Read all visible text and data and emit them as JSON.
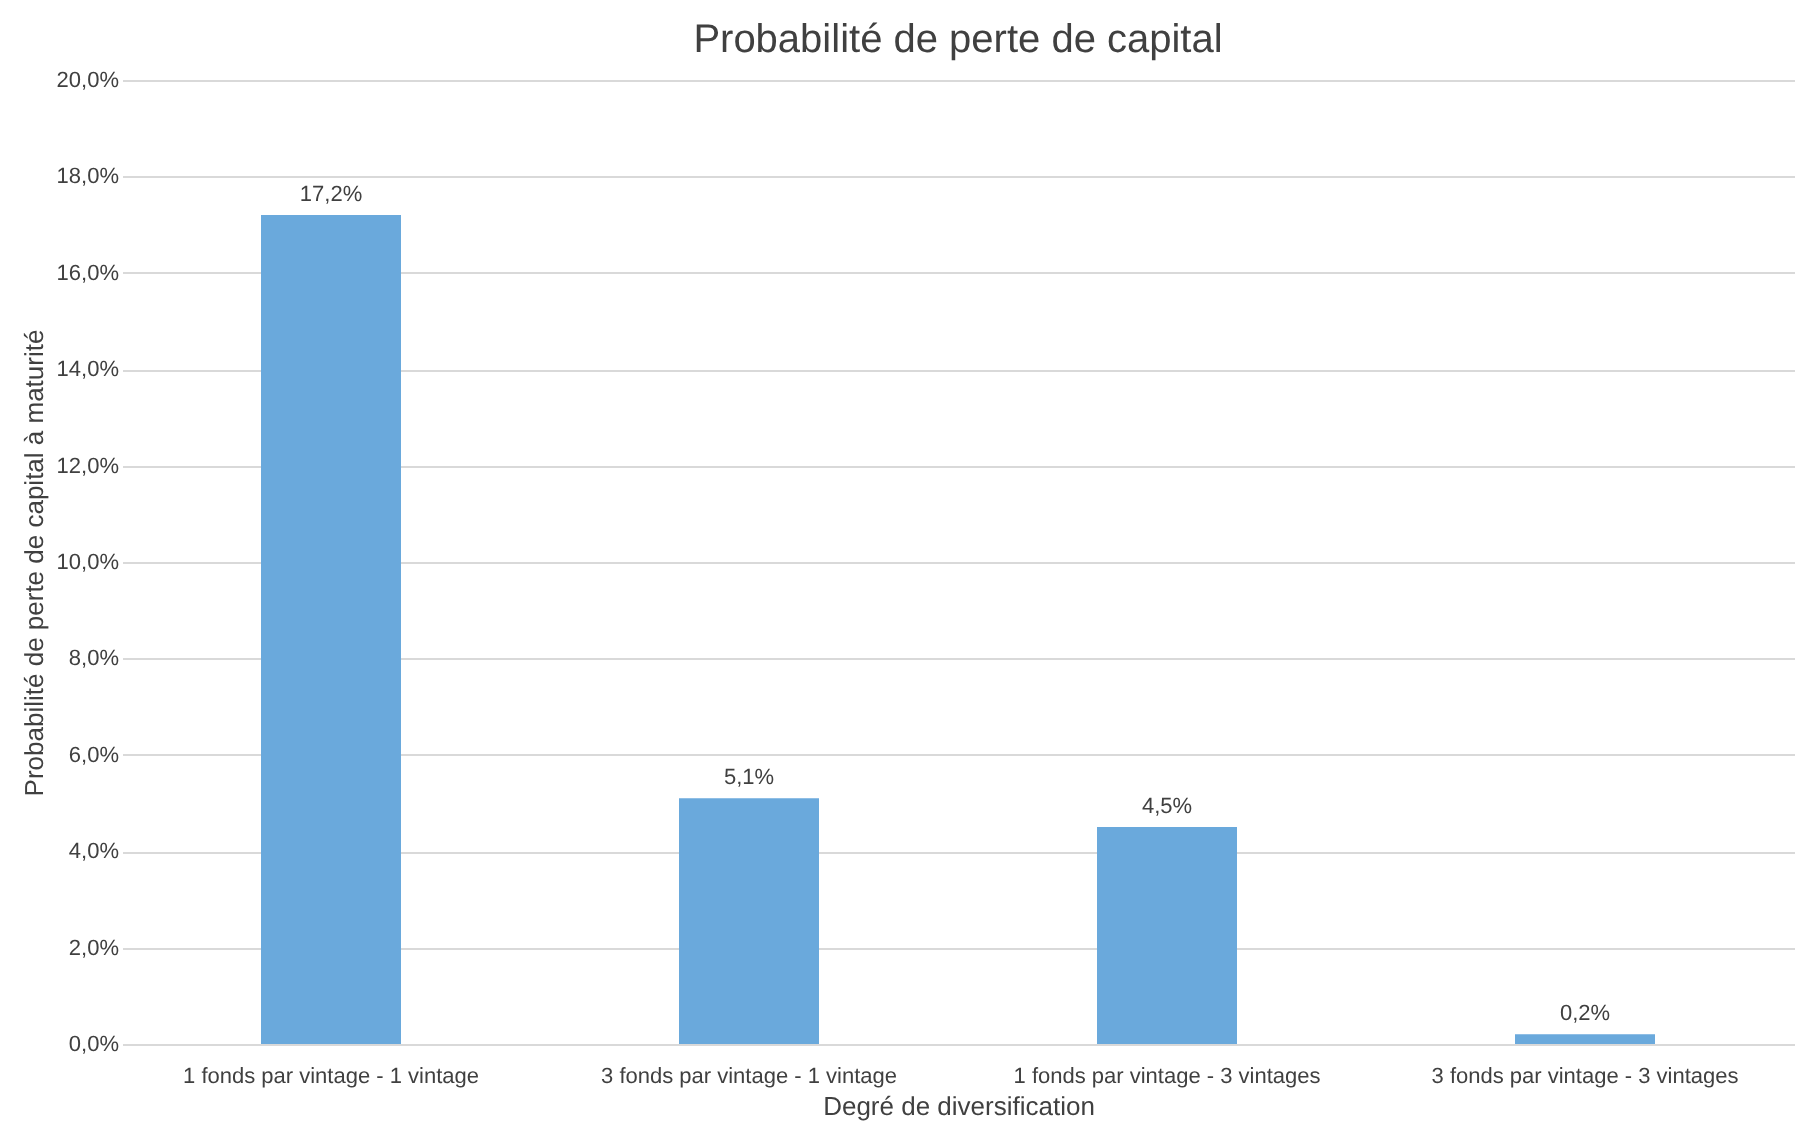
{
  "chart_data": {
    "type": "bar",
    "title": "Probabilité de perte de capital",
    "xlabel": "Degré de diversification",
    "ylabel": "Probabilité de perte de capital à maturité",
    "categories": [
      "1 fonds par vintage - 1 vintage",
      "3 fonds par vintage - 1 vintage",
      "1 fonds par vintage - 3 vintages",
      "3 fonds par vintage - 3 vintages"
    ],
    "values": [
      17.2,
      5.1,
      4.5,
      0.2
    ],
    "value_labels": [
      "17,2%",
      "5,1%",
      "4,5%",
      "0,2%"
    ],
    "color": "#6aa9dc",
    "ylim": [
      0,
      20
    ],
    "yticks": [
      {
        "value": 0,
        "label": "0,0%"
      },
      {
        "value": 2,
        "label": "2,0%"
      },
      {
        "value": 4,
        "label": "4,0%"
      },
      {
        "value": 6,
        "label": "6,0%"
      },
      {
        "value": 8,
        "label": "8,0%"
      },
      {
        "value": 10,
        "label": "10,0%"
      },
      {
        "value": 12,
        "label": "12,0%"
      },
      {
        "value": 14,
        "label": "14,0%"
      },
      {
        "value": 16,
        "label": "16,0%"
      },
      {
        "value": 18,
        "label": "18,0%"
      },
      {
        "value": 20,
        "label": "20,0%"
      }
    ],
    "grid": "y"
  }
}
